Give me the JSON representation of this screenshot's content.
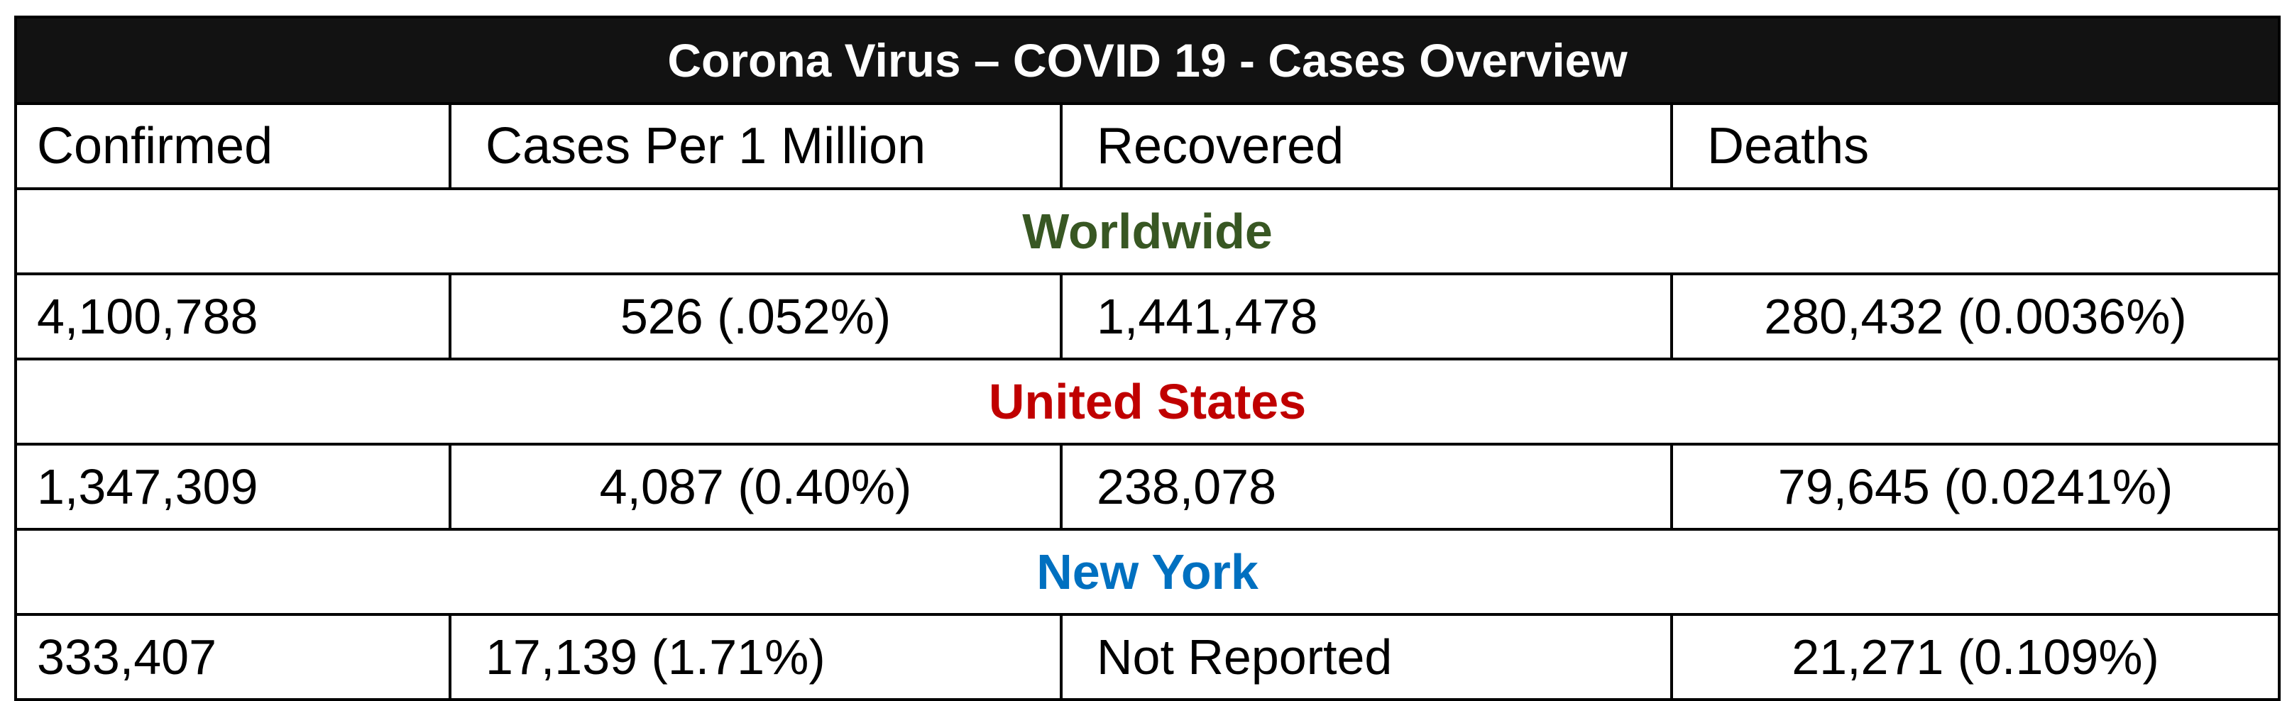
{
  "title": "Corona Virus – COVID 19 - Cases Overview",
  "headers": [
    "Confirmed",
    "Cases Per 1 Million",
    "Recovered",
    "Deaths"
  ],
  "regions": [
    {
      "name": "Worldwide",
      "color": "#385723",
      "confirmed": "4,100,788",
      "cases_per_million": "526 (.052%)",
      "recovered": "1,441,478",
      "deaths": "280,432 (0.0036%)"
    },
    {
      "name": "United States",
      "color": "#C00000",
      "confirmed": "1,347,309",
      "cases_per_million": "4,087 (0.40%)",
      "recovered": "238,078",
      "deaths": "79,645 (0.0241%)"
    },
    {
      "name": "New York",
      "color": "#0070C0",
      "confirmed": "333,407",
      "cases_per_million": "17,139 (1.71%)",
      "recovered": "Not Reported",
      "deaths": "21,271 (0.109%)"
    }
  ]
}
